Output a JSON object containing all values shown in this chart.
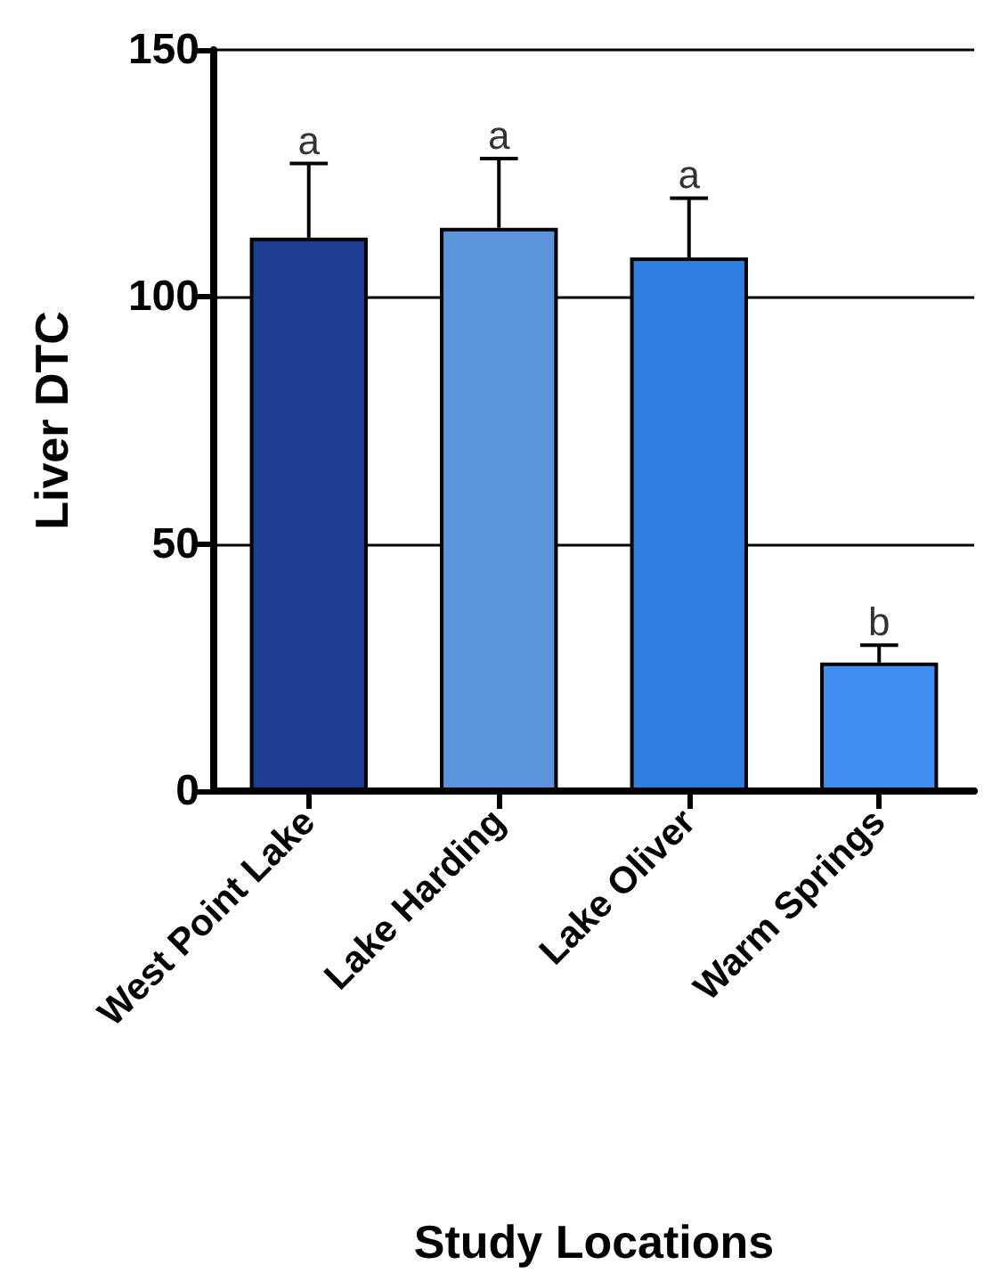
{
  "chart_data": {
    "type": "bar",
    "xlabel": "Study Locations",
    "ylabel": "Liver DTC",
    "categories": [
      "West Point Lake",
      "Lake Harding",
      "Lake Oliver",
      "Warm Springs"
    ],
    "values": [
      112,
      114,
      108,
      26
    ],
    "colors": [
      "#1c3f93",
      "#5b93dc",
      "#2e7fe0",
      "#3f8ff0"
    ],
    "errors": [
      [
        112,
        127
      ],
      [
        114,
        128
      ],
      [
        108,
        120
      ],
      [
        26,
        29.5
      ]
    ],
    "annotations": [
      {
        "text": "a",
        "x": "West Point Lake",
        "y": 127
      },
      {
        "text": "a",
        "x": "Lake Harding",
        "y": 128
      },
      {
        "text": "a",
        "x": "Lake Oliver",
        "y": 120
      },
      {
        "text": "b",
        "x": "Warm Springs",
        "y": 29.5
      }
    ],
    "ylim": [
      0,
      150
    ],
    "yticks": [
      0,
      50,
      100,
      150
    ],
    "grid": "y"
  }
}
